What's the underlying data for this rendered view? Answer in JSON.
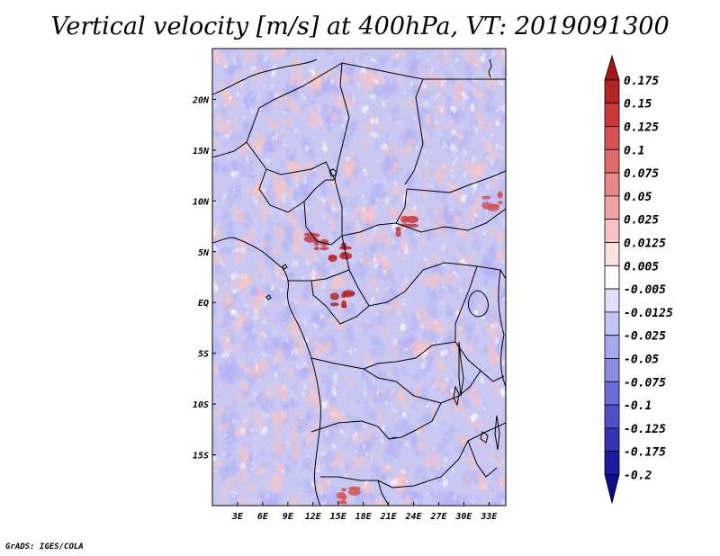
{
  "chart_data": {
    "type": "heatmap",
    "title": "Vertical velocity [m/s] at 400hPa, VT: 2019091300",
    "variable": "Vertical velocity",
    "units": "m/s",
    "level": "400hPa",
    "valid_time": "2019091300",
    "lon_range": [
      0,
      35
    ],
    "lat_range": [
      -20,
      25
    ],
    "x_ticks": [
      {
        "lon": 3,
        "label": "3E"
      },
      {
        "lon": 6,
        "label": "6E"
      },
      {
        "lon": 9,
        "label": "9E"
      },
      {
        "lon": 12,
        "label": "12E"
      },
      {
        "lon": 15,
        "label": "15E"
      },
      {
        "lon": 18,
        "label": "18E"
      },
      {
        "lon": 21,
        "label": "21E"
      },
      {
        "lon": 24,
        "label": "24E"
      },
      {
        "lon": 27,
        "label": "27E"
      },
      {
        "lon": 30,
        "label": "30E"
      },
      {
        "lon": 33,
        "label": "33E"
      }
    ],
    "y_ticks": [
      {
        "lat": 20,
        "label": "20N"
      },
      {
        "lat": 15,
        "label": "15N"
      },
      {
        "lat": 10,
        "label": "10N"
      },
      {
        "lat": 5,
        "label": "5N"
      },
      {
        "lat": 0,
        "label": "EQ"
      },
      {
        "lat": -5,
        "label": "5S"
      },
      {
        "lat": -10,
        "label": "10S"
      },
      {
        "lat": -15,
        "label": "15S"
      }
    ],
    "colorbar": {
      "labels": [
        "0.175",
        "0.15",
        "0.125",
        "0.1",
        "0.075",
        "0.05",
        "0.025",
        "0.0125",
        "0.005",
        "-0.005",
        "-0.0125",
        "-0.025",
        "-0.05",
        "-0.075",
        "-0.1",
        "-0.125",
        "-0.175",
        "-0.2"
      ],
      "colors": [
        "#a01818",
        "#b52424",
        "#c83a3a",
        "#d65252",
        "#e06c6c",
        "#e88888",
        "#f0a4a4",
        "#f6c4c4",
        "#fbe2e2",
        "#ffffff",
        "#e0e0fa",
        "#c4c4f4",
        "#a8a8ec",
        "#8c8ce4",
        "#6c6cd8",
        "#5050c8",
        "#3434b4",
        "#1c1ca0",
        "#0c0c8c"
      ],
      "extend": "both"
    },
    "highlights": [
      {
        "lon": 15.3,
        "lat": 5.0,
        "value": 0.15
      },
      {
        "lon": 12.5,
        "lat": 6.0,
        "value": 0.125
      },
      {
        "lon": 15.5,
        "lat": 0.3,
        "value": 0.15
      },
      {
        "lon": 23.0,
        "lat": 7.5,
        "value": 0.125
      },
      {
        "lon": 33.5,
        "lat": 10.0,
        "value": 0.1
      },
      {
        "lon": 16.0,
        "lat": -19.0,
        "value": 0.1
      }
    ]
  },
  "credit": "GrADS: IGES/COLA"
}
